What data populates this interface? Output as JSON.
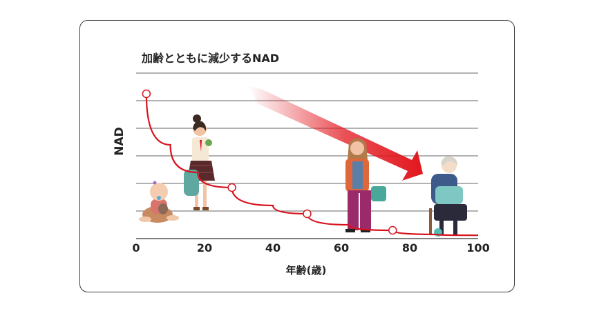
{
  "chart_data": {
    "type": "line",
    "title": "加齢とともに減少するNAD",
    "xlabel": "年齢(歳)",
    "ylabel": "NAD",
    "xlim": [
      0,
      100
    ],
    "ylim": [
      0,
      6
    ],
    "x_ticks": [
      "0",
      "20",
      "40",
      "60",
      "80",
      "100"
    ],
    "grid": true,
    "series": [
      {
        "x": [
          3,
          10,
          18,
          28,
          40,
          50,
          62,
          75,
          88,
          100
        ],
        "y": [
          5.25,
          3.4,
          2.4,
          1.85,
          1.2,
          0.9,
          0.5,
          0.3,
          0.15,
          0.12
        ]
      }
    ],
    "markers": [
      {
        "x": 3,
        "y": 5.25
      },
      {
        "x": 28,
        "y": 1.85
      },
      {
        "x": 50,
        "y": 0.9
      },
      {
        "x": 75,
        "y": 0.3
      }
    ],
    "line_color": "#d7131e",
    "arrow_color": "#e2171e"
  }
}
